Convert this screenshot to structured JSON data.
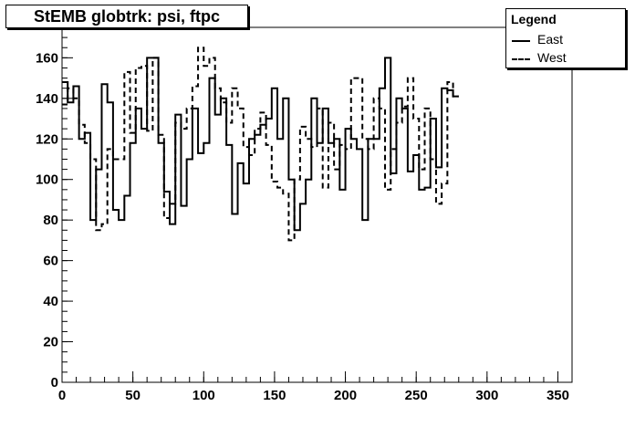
{
  "title": "StEMB globtrk: psi, ftpc",
  "legend": {
    "title": "Legend",
    "entries": [
      {
        "label": "East",
        "style": "solid"
      },
      {
        "label": "West",
        "style": "dashed"
      }
    ]
  },
  "chart_data": {
    "type": "line",
    "title": "StEMB globtrk: psi, ftpc",
    "xlabel": "",
    "ylabel": "",
    "xlim": [
      0,
      360
    ],
    "ylim": [
      0,
      175
    ],
    "xticks": [
      0,
      50,
      100,
      150,
      200,
      250,
      300,
      350
    ],
    "yticks": [
      0,
      20,
      40,
      60,
      80,
      100,
      120,
      140,
      160
    ],
    "grid": false,
    "legend_position": "top-right",
    "bin_width": 4,
    "series": [
      {
        "name": "East",
        "style": "solid",
        "values": [
          148,
          138,
          146,
          120,
          123,
          80,
          105,
          147,
          138,
          85,
          80,
          92,
          118,
          135,
          125,
          160,
          160,
          118,
          94,
          78,
          132,
          87,
          110,
          135,
          113,
          118,
          150,
          132,
          140,
          117,
          83,
          108,
          98,
          120,
          122,
          127,
          130,
          145,
          120,
          140,
          100,
          75,
          88,
          100,
          140,
          118,
          135,
          118,
          120,
          95,
          125,
          120,
          115,
          80,
          120,
          120,
          145,
          160,
          103,
          140,
          135,
          104,
          112,
          95,
          96,
          130,
          106,
          145,
          144,
          141
        ]
      },
      {
        "name": "West",
        "style": "dashed",
        "values": [
          137,
          145,
          140,
          127,
          118,
          110,
          75,
          78,
          115,
          110,
          110,
          153,
          123,
          155,
          156,
          124,
          160,
          122,
          81,
          88,
          128,
          125,
          135,
          146,
          165,
          156,
          160,
          145,
          138,
          128,
          145,
          135,
          116,
          112,
          125,
          133,
          117,
          99,
          96,
          93,
          70,
          100,
          126,
          120,
          116,
          135,
          96,
          128,
          105,
          117,
          115,
          150,
          150,
          120,
          115,
          140,
          135,
          95,
          115,
          128,
          136,
          150,
          130,
          105,
          135,
          110,
          88,
          98,
          148,
          141
        ]
      }
    ]
  }
}
